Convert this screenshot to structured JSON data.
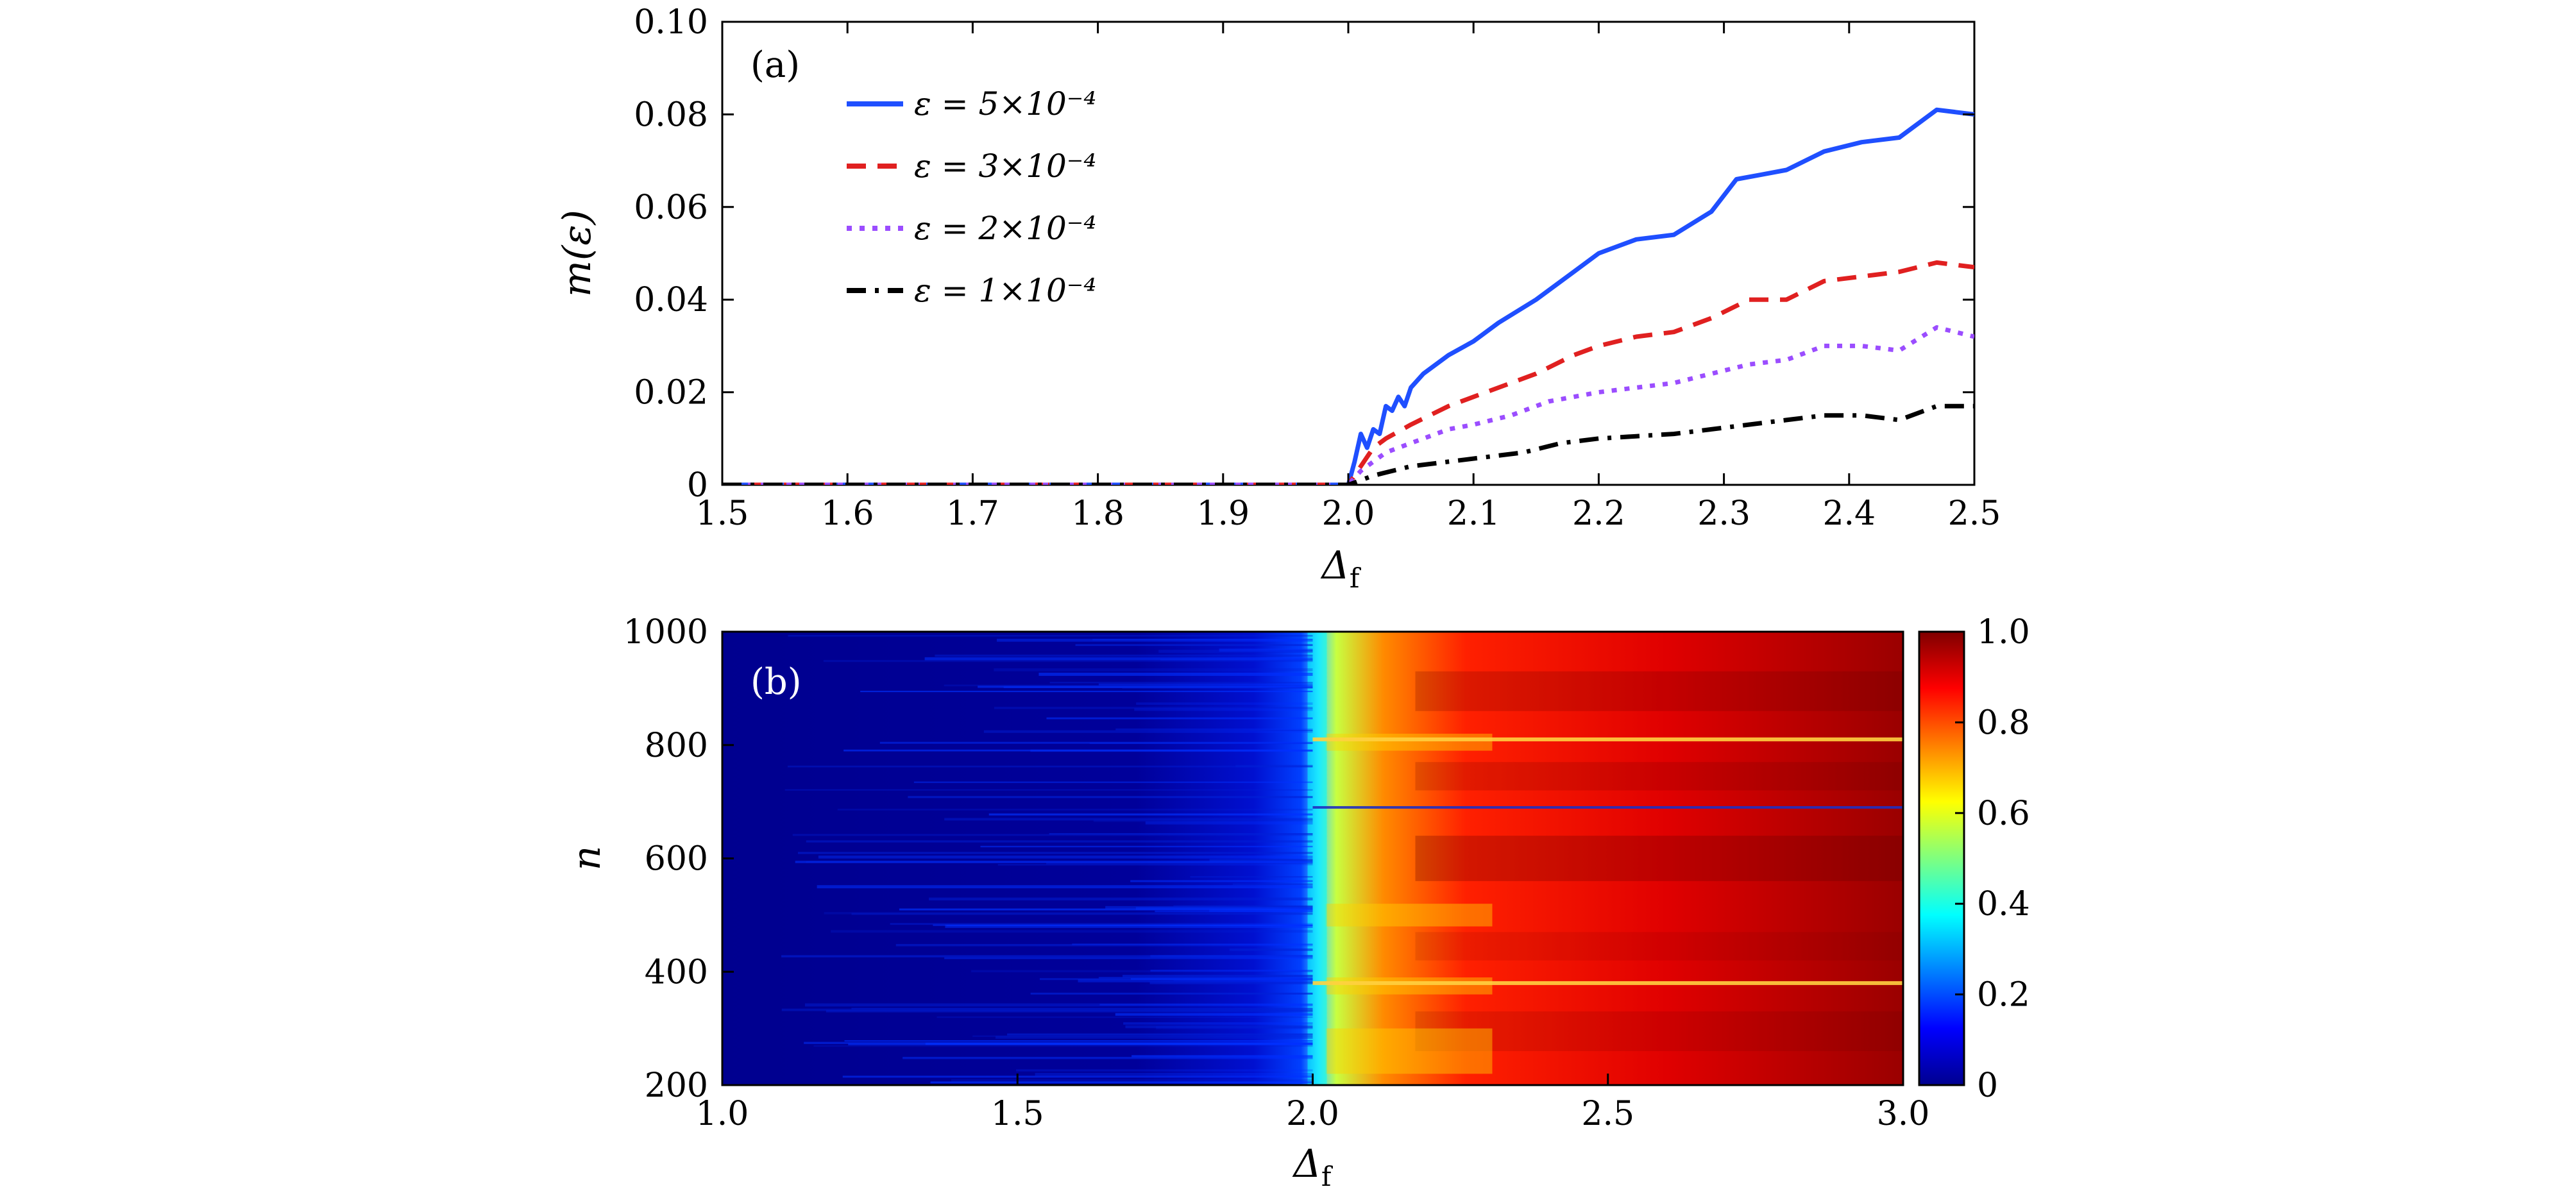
{
  "chart_data": [
    {
      "type": "line",
      "panel_label": "(a)",
      "xlabel": "Δ",
      "xlabel_sub": "f",
      "ylabel": "m(ε)",
      "xlim": [
        1.5,
        2.5
      ],
      "ylim": [
        0,
        0.1
      ],
      "xticks": [
        "1.5",
        "1.6",
        "1.7",
        "1.8",
        "1.9",
        "2.0",
        "2.1",
        "2.2",
        "2.3",
        "2.4",
        "2.5"
      ],
      "yticks": [
        "0",
        "0.02",
        "0.04",
        "0.06",
        "0.08",
        "0.10"
      ],
      "grid": false,
      "legend_position": "top-left",
      "series": [
        {
          "name": "ε = 5×10⁻⁴",
          "color": "#1f4fff",
          "style": "solid",
          "x": [
            1.5,
            1.9,
            1.995,
            2.0,
            2.005,
            2.01,
            2.015,
            2.02,
            2.025,
            2.03,
            2.035,
            2.04,
            2.045,
            2.05,
            2.06,
            2.08,
            2.1,
            2.12,
            2.15,
            2.18,
            2.2,
            2.23,
            2.26,
            2.29,
            2.31,
            2.33,
            2.35,
            2.38,
            2.41,
            2.44,
            2.47,
            2.5
          ],
          "y": [
            0,
            0,
            0,
            0,
            0.005,
            0.011,
            0.008,
            0.012,
            0.011,
            0.017,
            0.016,
            0.019,
            0.017,
            0.021,
            0.024,
            0.028,
            0.031,
            0.035,
            0.04,
            0.046,
            0.05,
            0.053,
            0.054,
            0.059,
            0.066,
            0.067,
            0.068,
            0.072,
            0.074,
            0.075,
            0.081,
            0.08
          ]
        },
        {
          "name": "ε = 3×10⁻⁴",
          "color": "#e02020",
          "style": "dashed",
          "x": [
            1.5,
            1.9,
            1.995,
            2.0,
            2.01,
            2.02,
            2.03,
            2.05,
            2.08,
            2.1,
            2.12,
            2.15,
            2.18,
            2.2,
            2.23,
            2.26,
            2.29,
            2.32,
            2.35,
            2.38,
            2.41,
            2.44,
            2.47,
            2.5
          ],
          "y": [
            0,
            0,
            0,
            0,
            0.004,
            0.008,
            0.01,
            0.013,
            0.017,
            0.019,
            0.021,
            0.024,
            0.028,
            0.03,
            0.032,
            0.033,
            0.036,
            0.04,
            0.04,
            0.044,
            0.045,
            0.046,
            0.048,
            0.047
          ]
        },
        {
          "name": "ε = 2×10⁻⁴",
          "color": "#9b4dff",
          "style": "dotted",
          "x": [
            1.5,
            1.9,
            1.995,
            2.0,
            2.01,
            2.02,
            2.03,
            2.05,
            2.08,
            2.1,
            2.13,
            2.16,
            2.2,
            2.23,
            2.26,
            2.29,
            2.32,
            2.35,
            2.38,
            2.41,
            2.44,
            2.47,
            2.5
          ],
          "y": [
            0,
            0,
            0,
            0,
            0.003,
            0.005,
            0.007,
            0.009,
            0.012,
            0.013,
            0.015,
            0.018,
            0.02,
            0.021,
            0.022,
            0.024,
            0.026,
            0.027,
            0.03,
            0.03,
            0.029,
            0.034,
            0.032
          ]
        },
        {
          "name": "ε = 1×10⁻⁴",
          "color": "#000000",
          "style": "dashdot",
          "x": [
            1.5,
            1.9,
            1.995,
            2.0,
            2.02,
            2.05,
            2.08,
            2.11,
            2.14,
            2.17,
            2.2,
            2.23,
            2.26,
            2.29,
            2.32,
            2.35,
            2.38,
            2.41,
            2.44,
            2.47,
            2.5
          ],
          "y": [
            0,
            0,
            0,
            0,
            0.002,
            0.004,
            0.005,
            0.006,
            0.007,
            0.009,
            0.01,
            0.0105,
            0.011,
            0.012,
            0.013,
            0.014,
            0.015,
            0.015,
            0.014,
            0.017,
            0.017
          ]
        }
      ]
    },
    {
      "type": "heatmap",
      "panel_label": "(b)",
      "xlabel": "Δ",
      "xlabel_sub": "f",
      "ylabel": "n",
      "xlim": [
        1.0,
        3.0
      ],
      "ylim": [
        200,
        1000
      ],
      "xticks": [
        "1.0",
        "1.5",
        "2.0",
        "2.5",
        "3.0"
      ],
      "yticks": [
        "200",
        "400",
        "600",
        "800",
        "1000"
      ],
      "colorbar_ticks": [
        "0",
        "0.2",
        "0.4",
        "0.6",
        "0.8",
        "1.0"
      ],
      "colorbar_range": [
        0,
        1
      ],
      "colormap": "jet",
      "transition_x": 2.0,
      "value_low_region": 0.05,
      "value_high_region_max": 0.98,
      "bright_lines_n": [
        380,
        810
      ],
      "dark_line_n": 690
    }
  ]
}
